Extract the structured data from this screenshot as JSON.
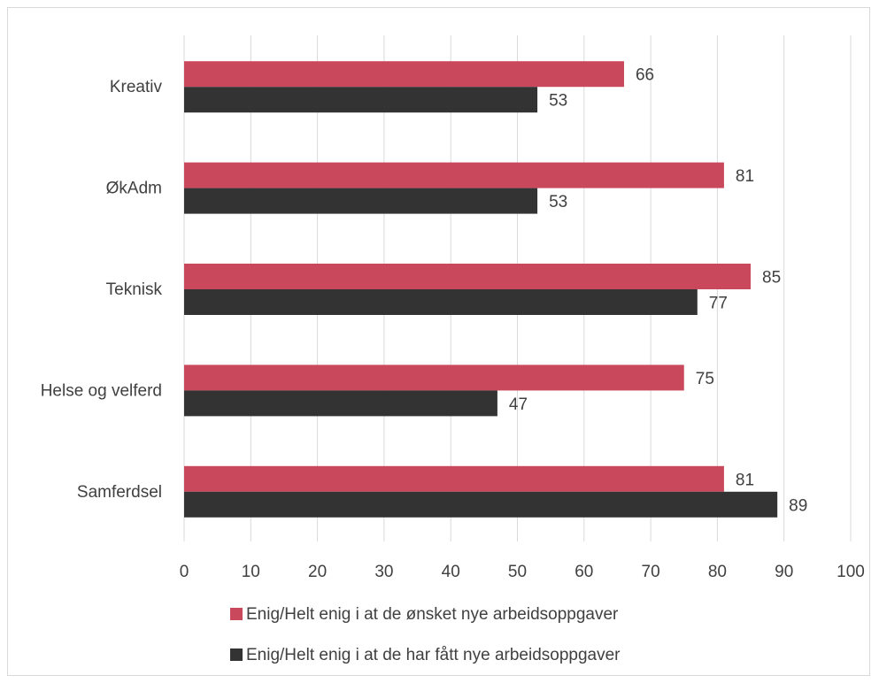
{
  "chart_data": {
    "type": "bar",
    "orientation": "horizontal",
    "categories": [
      "Kreativ",
      "ØkAdm",
      "Teknisk",
      "Helse og velferd",
      "Samferdsel"
    ],
    "series": [
      {
        "name": "Enig/Helt enig i at de ønsket nye arbeidsoppgaver",
        "color": "#c9485b",
        "values": [
          66,
          81,
          85,
          75,
          81
        ]
      },
      {
        "name": "Enig/Helt enig i at de har fått nye arbeidsoppgaver",
        "color": "#333333",
        "values": [
          53,
          53,
          77,
          47,
          89
        ]
      }
    ],
    "xlim": [
      0,
      100
    ],
    "xticks": [
      "0",
      "10",
      "20",
      "30",
      "40",
      "50",
      "60",
      "70",
      "80",
      "90",
      "100"
    ],
    "grid": true,
    "legend_position": "bottom",
    "data_labels": true
  }
}
